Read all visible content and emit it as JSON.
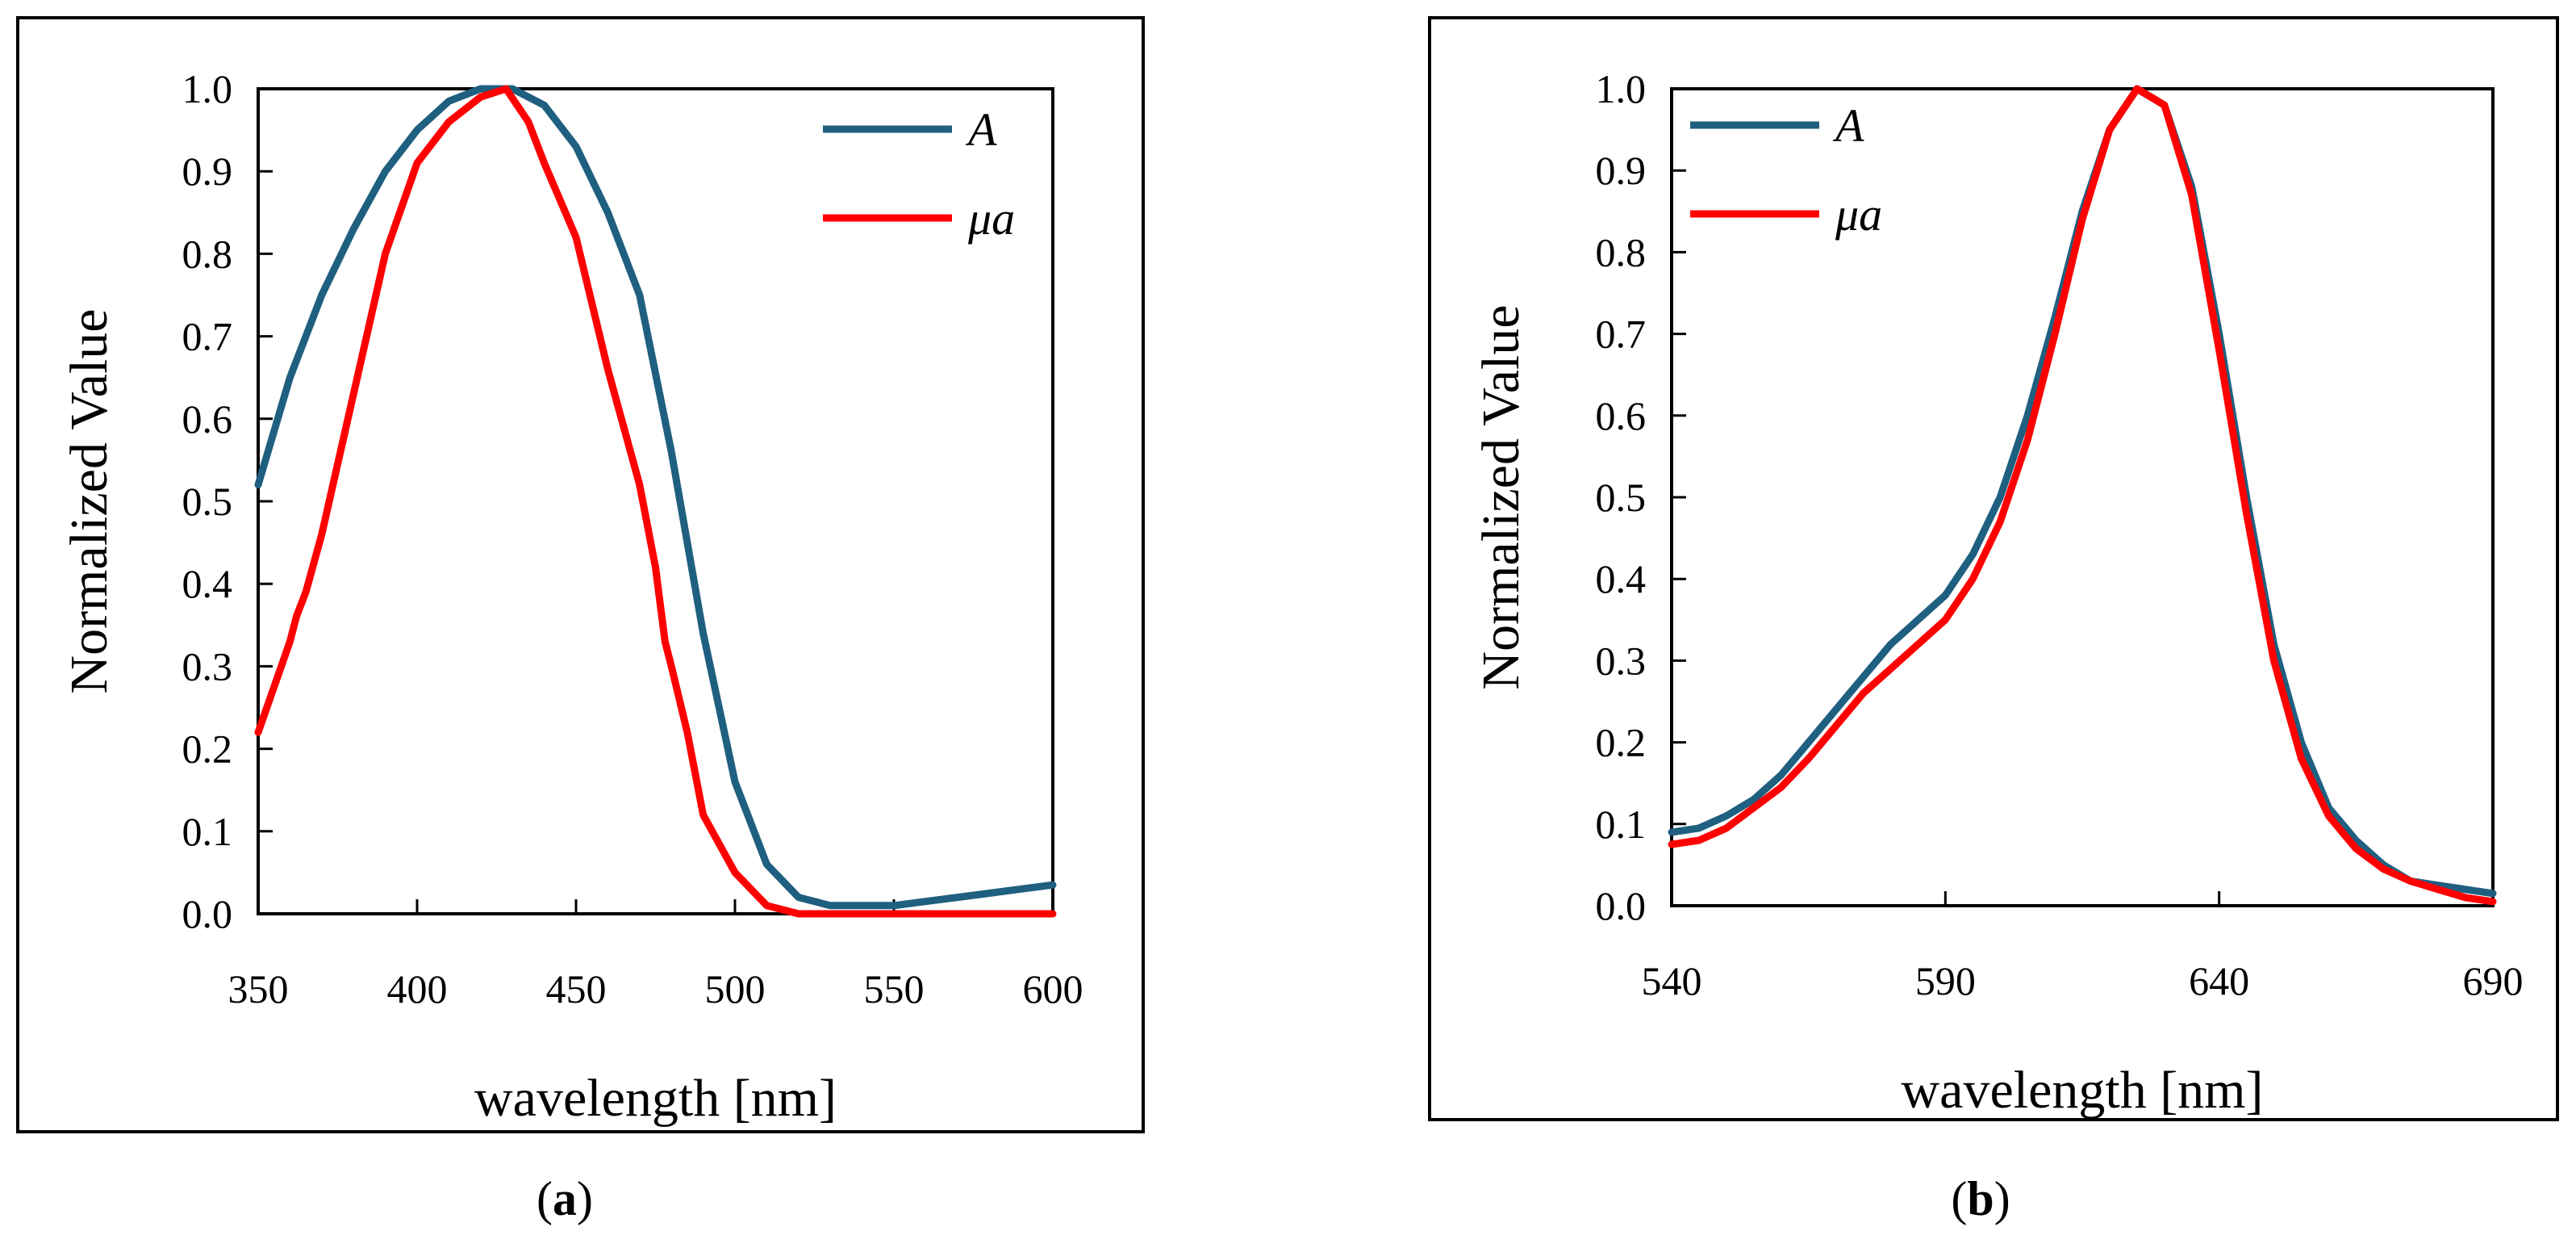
{
  "chart_data": [
    {
      "id": "a",
      "type": "line",
      "caption_letter": "a",
      "xlabel": "wavelength [nm]",
      "ylabel": "Normalized Value",
      "xlim": [
        350,
        600
      ],
      "ylim": [
        0,
        1
      ],
      "xticks": [
        350,
        400,
        450,
        500,
        550,
        600
      ],
      "yticks": [
        "0.0",
        "0.1",
        "0.2",
        "0.3",
        "0.4",
        "0.5",
        "0.6",
        "0.7",
        "0.8",
        "0.9",
        "1.0"
      ],
      "grid": false,
      "legend_position": "top-right",
      "series": [
        {
          "name": "A",
          "color": "#1f5f80",
          "points": [
            [
              350,
              0.52
            ],
            [
              360,
              0.65
            ],
            [
              370,
              0.75
            ],
            [
              380,
              0.83
            ],
            [
              390,
              0.9
            ],
            [
              400,
              0.95
            ],
            [
              410,
              0.985
            ],
            [
              420,
              1.0
            ],
            [
              430,
              1.0
            ],
            [
              440,
              0.98
            ],
            [
              450,
              0.93
            ],
            [
              460,
              0.85
            ],
            [
              470,
              0.75
            ],
            [
              480,
              0.56
            ],
            [
              490,
              0.34
            ],
            [
              500,
              0.16
            ],
            [
              510,
              0.06
            ],
            [
              520,
              0.02
            ],
            [
              530,
              0.01
            ],
            [
              540,
              0.01
            ],
            [
              550,
              0.01
            ],
            [
              560,
              0.015
            ],
            [
              570,
              0.02
            ],
            [
              580,
              0.025
            ],
            [
              590,
              0.03
            ],
            [
              600,
              0.035
            ]
          ]
        },
        {
          "name": "μa",
          "color": "#ff0000",
          "points": [
            [
              350,
              0.22
            ],
            [
              360,
              0.33
            ],
            [
              362,
              0.36
            ],
            [
              365,
              0.39
            ],
            [
              370,
              0.46
            ],
            [
              380,
              0.63
            ],
            [
              390,
              0.8
            ],
            [
              400,
              0.91
            ],
            [
              410,
              0.96
            ],
            [
              420,
              0.99
            ],
            [
              428,
              1.0
            ],
            [
              435,
              0.96
            ],
            [
              440,
              0.91
            ],
            [
              450,
              0.82
            ],
            [
              460,
              0.66
            ],
            [
              470,
              0.52
            ],
            [
              475,
              0.42
            ],
            [
              478,
              0.33
            ],
            [
              480,
              0.3
            ],
            [
              485,
              0.22
            ],
            [
              487,
              0.18
            ],
            [
              490,
              0.12
            ],
            [
              500,
              0.05
            ],
            [
              510,
              0.01
            ],
            [
              520,
              0.0
            ],
            [
              540,
              0.0
            ],
            [
              560,
              0.0
            ],
            [
              580,
              0.0
            ],
            [
              600,
              0.0
            ]
          ]
        }
      ]
    },
    {
      "id": "b",
      "type": "line",
      "caption_letter": "b",
      "xlabel": "wavelength [nm]",
      "ylabel": "Normalized Value",
      "xlim": [
        540,
        690
      ],
      "ylim": [
        0,
        1
      ],
      "xticks": [
        540,
        590,
        640,
        690
      ],
      "yticks": [
        "0.0",
        "0.1",
        "0.2",
        "0.3",
        "0.4",
        "0.5",
        "0.6",
        "0.7",
        "0.8",
        "0.9",
        "1.0"
      ],
      "grid": false,
      "legend_position": "top-left",
      "series": [
        {
          "name": "A",
          "color": "#1f5f80",
          "points": [
            [
              540,
              0.09
            ],
            [
              545,
              0.095
            ],
            [
              550,
              0.11
            ],
            [
              555,
              0.13
            ],
            [
              560,
              0.16
            ],
            [
              565,
              0.2
            ],
            [
              570,
              0.24
            ],
            [
              575,
              0.28
            ],
            [
              580,
              0.32
            ],
            [
              585,
              0.35
            ],
            [
              590,
              0.38
            ],
            [
              595,
              0.43
            ],
            [
              600,
              0.5
            ],
            [
              605,
              0.6
            ],
            [
              610,
              0.72
            ],
            [
              615,
              0.85
            ],
            [
              620,
              0.95
            ],
            [
              625,
              1.0
            ],
            [
              630,
              0.98
            ],
            [
              635,
              0.88
            ],
            [
              640,
              0.7
            ],
            [
              645,
              0.5
            ],
            [
              650,
              0.32
            ],
            [
              655,
              0.2
            ],
            [
              660,
              0.12
            ],
            [
              665,
              0.08
            ],
            [
              670,
              0.05
            ],
            [
              675,
              0.03
            ],
            [
              680,
              0.025
            ],
            [
              685,
              0.02
            ],
            [
              690,
              0.015
            ]
          ]
        },
        {
          "name": "μa",
          "color": "#ff0000",
          "points": [
            [
              540,
              0.075
            ],
            [
              545,
              0.08
            ],
            [
              550,
              0.095
            ],
            [
              555,
              0.12
            ],
            [
              560,
              0.145
            ],
            [
              565,
              0.18
            ],
            [
              570,
              0.22
            ],
            [
              575,
              0.26
            ],
            [
              580,
              0.29
            ],
            [
              585,
              0.32
            ],
            [
              590,
              0.35
            ],
            [
              595,
              0.4
            ],
            [
              600,
              0.47
            ],
            [
              605,
              0.57
            ],
            [
              610,
              0.7
            ],
            [
              615,
              0.84
            ],
            [
              620,
              0.95
            ],
            [
              625,
              1.0
            ],
            [
              630,
              0.98
            ],
            [
              635,
              0.87
            ],
            [
              640,
              0.68
            ],
            [
              645,
              0.48
            ],
            [
              650,
              0.3
            ],
            [
              655,
              0.18
            ],
            [
              660,
              0.11
            ],
            [
              665,
              0.07
            ],
            [
              670,
              0.045
            ],
            [
              675,
              0.03
            ],
            [
              680,
              0.02
            ],
            [
              685,
              0.01
            ],
            [
              690,
              0.005
            ]
          ]
        }
      ]
    }
  ]
}
